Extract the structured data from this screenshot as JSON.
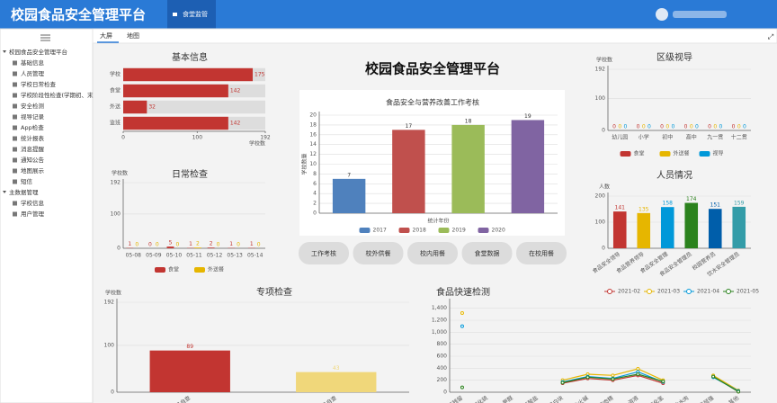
{
  "header": {
    "title": "校园食品安全管理平台",
    "tab": "食堂监管"
  },
  "sidebar": {
    "groups": [
      {
        "title": "校园食品安全管理平台",
        "items": [
          "基础信息",
          "人员管理",
          "学校日常检查",
          "学校阶段性检查(学期初、末",
          "安全检测",
          "视导记录",
          "App检查",
          "统计报表",
          "消息提醒",
          "通知公告",
          "地图展示",
          "短信"
        ]
      },
      {
        "title": "主数据管理",
        "items": [
          "学校信息",
          "用户管理"
        ]
      }
    ]
  },
  "tabs": [
    "大屏",
    "地图"
  ],
  "dashboard_title": "校园食品安全管理平台",
  "buttons": [
    "工作考核",
    "校外供餐",
    "校内用餐",
    "食堂数据",
    "在校用餐"
  ],
  "chart_data": [
    {
      "type": "hbar",
      "title": "基本信息",
      "categories": [
        "学校",
        "食堂",
        "外送",
        "监班"
      ],
      "values": [
        175,
        142,
        32,
        142
      ],
      "color": "#c23531",
      "xlim": [
        0,
        192
      ],
      "xticks": [
        0,
        100,
        192
      ],
      "x_label": "学校数"
    },
    {
      "type": "bar",
      "title": "日常检查",
      "y_label": "学校数",
      "categories": [
        "05-08",
        "05-09",
        "05-10",
        "05-11",
        "05-12",
        "05-13",
        "05-14"
      ],
      "series": [
        {
          "name": "食堂",
          "color": "#c23531",
          "values": [
            1,
            0,
            5,
            1,
            2,
            1,
            1
          ]
        },
        {
          "name": "外送餐",
          "color": "#e6b600",
          "values": [
            0,
            0,
            0,
            2,
            0,
            0,
            0
          ]
        }
      ],
      "ylim": [
        0,
        192
      ],
      "yticks": [
        0,
        100,
        192
      ],
      "legend": "bottom"
    },
    {
      "type": "bar",
      "title": "食品安全与营养改善工作考核",
      "y_label": "学校数量",
      "x_label": "统计年份",
      "categories": [
        "2017",
        "2018",
        "2019",
        "2020"
      ],
      "values": [
        7,
        17,
        18,
        19
      ],
      "colors": [
        "#4f81bd",
        "#c0504d",
        "#9bbb59",
        "#8064a2"
      ],
      "ylim": [
        0,
        20
      ],
      "yticks": [
        0,
        2,
        4,
        6,
        8,
        10,
        12,
        14,
        16,
        18,
        20
      ],
      "legend": "bottom"
    },
    {
      "type": "bar",
      "title": "区级视导",
      "y_label": "学校数",
      "categories": [
        "幼儿园",
        "小学",
        "初中",
        "高中",
        "九一贯",
        "十二贯"
      ],
      "series": [
        {
          "name": "食堂",
          "color": "#c23531",
          "values": [
            0,
            0,
            0,
            0,
            0,
            0
          ]
        },
        {
          "name": "外送餐",
          "color": "#e6b600",
          "values": [
            0,
            0,
            0,
            0,
            0,
            0
          ]
        },
        {
          "name": "视导",
          "color": "#0098d9",
          "values": [
            0,
            0,
            0,
            0,
            0,
            0
          ]
        }
      ],
      "ylim": [
        0,
        192
      ],
      "yticks": [
        0,
        100,
        192
      ],
      "legend": "bottom"
    },
    {
      "type": "bar",
      "title": "人员情况",
      "y_label": "人数",
      "categories": [
        "食品安全领导",
        "食品营养领导",
        "食品安全管理",
        "食品安全管理员",
        "校园营养员",
        "饮水安全管理员"
      ],
      "values": [
        141,
        135,
        158,
        174,
        151,
        159
      ],
      "colors": [
        "#c23531",
        "#e6b600",
        "#0098d9",
        "#2b821d",
        "#005eaa",
        "#339ca8"
      ],
      "ylim": [
        0,
        200
      ],
      "yticks": [
        0,
        100,
        200
      ]
    },
    {
      "type": "bar",
      "title": "专项检查",
      "y_label": "学校数",
      "categories": [
        "量化食品自查",
        "净化食品自查"
      ],
      "values": [
        89,
        43
      ],
      "colors": [
        "#c23531",
        "#f0d77a"
      ],
      "ylim": [
        0,
        192
      ],
      "yticks": [
        0,
        100,
        192
      ]
    },
    {
      "type": "line",
      "title": "食品快速检测",
      "categories": [
        "农药残留",
        "二氧化硫",
        "甲醛",
        "亚硝酸盐",
        "吊白块",
        "工业火碱",
        "瘦肉精",
        "溶液",
        "过氧化氢",
        "注水肉",
        "毒鼠强",
        "其他"
      ],
      "series": [
        {
          "name": "2021-02",
          "color": "#c23531",
          "values": [
            null,
            null,
            null,
            null,
            150,
            230,
            200,
            280,
            150,
            null,
            260,
            10
          ]
        },
        {
          "name": "2021-03",
          "color": "#e6b600",
          "values": [
            1320,
            null,
            null,
            null,
            200,
            300,
            280,
            390,
            200,
            null,
            280,
            30
          ]
        },
        {
          "name": "2021-04",
          "color": "#0098d9",
          "values": [
            1100,
            null,
            null,
            null,
            170,
            260,
            230,
            340,
            170,
            null,
            250,
            20
          ]
        },
        {
          "name": "2021-05",
          "color": "#2b821d",
          "values": [
            80,
            null,
            null,
            null,
            160,
            250,
            220,
            300,
            180,
            null,
            260,
            10
          ]
        }
      ],
      "ylim": [
        0,
        1500
      ],
      "yticks": [
        0,
        200,
        400,
        600,
        800,
        {
          "value": 1000,
          "label": "1,000"
        },
        {
          "value": 1200,
          "label": "1,200"
        },
        {
          "value": 1400,
          "label": "1,400"
        }
      ],
      "legend": "top-right"
    }
  ]
}
